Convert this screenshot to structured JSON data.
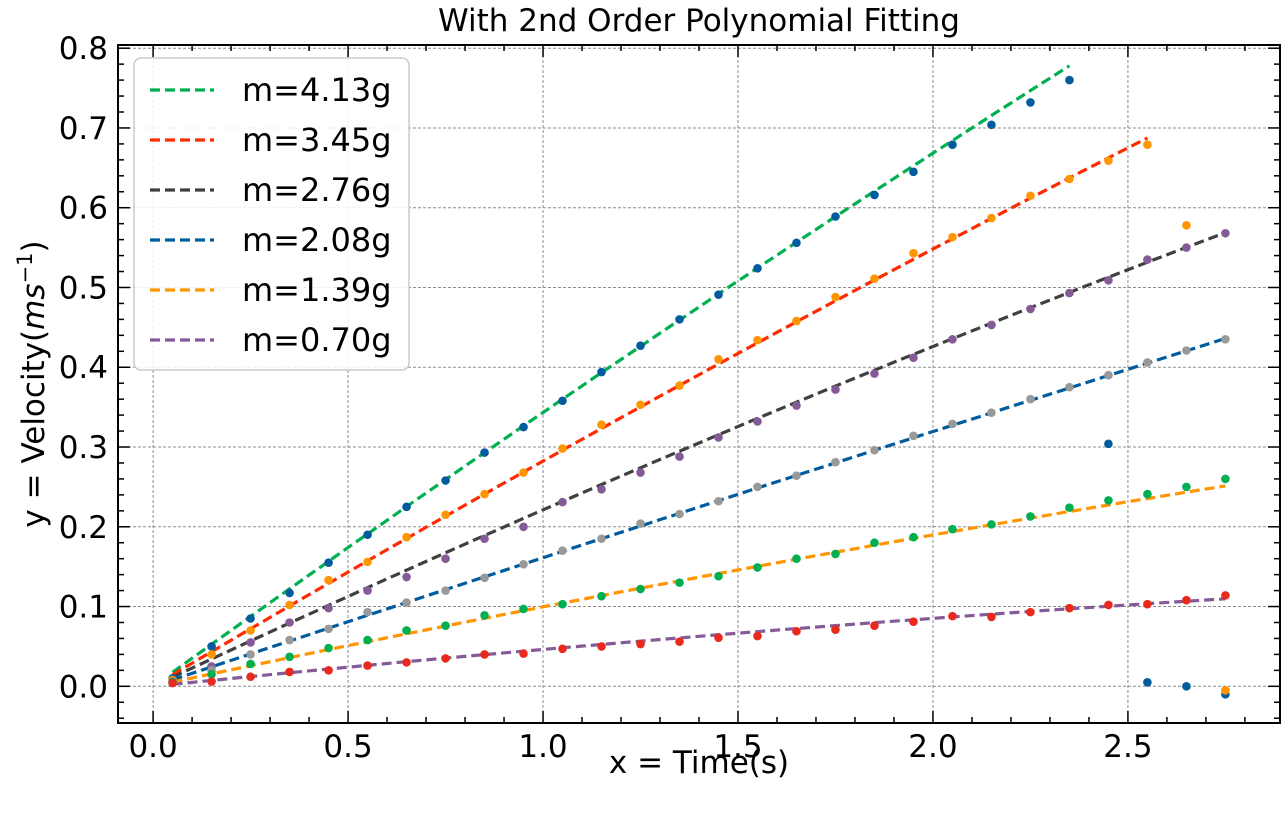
{
  "chart_data": {
    "type": "scatter",
    "title": "With 2nd Order Polynomial Fitting",
    "xlabel": "x = Time(s)",
    "ylabel_prefix": "y = Velocity(",
    "ylabel_unit": "ms",
    "ylabel_exp": "−1",
    "ylabel_suffix": ")",
    "xlim": [
      -0.09,
      2.89
    ],
    "ylim": [
      -0.046,
      0.804
    ],
    "xticks": [
      0.0,
      0.5,
      1.0,
      1.5,
      2.0,
      2.5
    ],
    "xtick_labels": [
      "0.0",
      "0.5",
      "1.0",
      "1.5",
      "2.0",
      "2.5"
    ],
    "yticks": [
      0.0,
      0.1,
      0.2,
      0.3,
      0.4,
      0.5,
      0.6,
      0.7,
      0.8
    ],
    "ytick_labels": [
      "0.0",
      "0.1",
      "0.2",
      "0.3",
      "0.4",
      "0.5",
      "0.6",
      "0.7",
      "0.8"
    ],
    "grid": true,
    "legend_position": "top-left",
    "fits": [
      {
        "name": "m=4.13g",
        "color": "#00b050",
        "x_range": [
          0.05,
          2.35
        ],
        "coeffs": [
          -0.0091,
          0.3524,
          0.0
        ]
      },
      {
        "name": "m=3.45g",
        "color": "#ff2a00",
        "x_range": [
          0.05,
          2.55
        ],
        "coeffs": [
          -0.0082,
          0.2905,
          0.0
        ]
      },
      {
        "name": "m=2.76g",
        "color": "#404040",
        "x_range": [
          0.05,
          2.75
        ],
        "coeffs": [
          -0.0082,
          0.2294,
          0.0
        ]
      },
      {
        "name": "m=2.08g",
        "color": "#005c9e",
        "x_range": [
          0.05,
          2.75
        ],
        "coeffs": [
          -0.0015,
          0.1627,
          0.0
        ]
      },
      {
        "name": "m=1.39g",
        "color": "#ff9500",
        "x_range": [
          0.05,
          2.75
        ],
        "coeffs": [
          -0.0047,
          0.1043,
          0.0
        ]
      },
      {
        "name": "m=0.70g",
        "color": "#845b97",
        "x_range": [
          0.05,
          2.75
        ],
        "coeffs": [
          -0.0036,
          0.0498,
          0.0
        ]
      }
    ],
    "point_series": [
      {
        "color": "#005c9e",
        "x": [
          0.05,
          0.15,
          0.25,
          0.35,
          0.45,
          0.55,
          0.65,
          0.75,
          0.85,
          0.95,
          1.05,
          1.15,
          1.25,
          1.35,
          1.45,
          1.55,
          1.65,
          1.75,
          1.85,
          1.95,
          2.05,
          2.15,
          2.25,
          2.35,
          2.45,
          2.55,
          2.65,
          2.75
        ],
        "y": [
          0.01,
          0.05,
          0.085,
          0.117,
          0.155,
          0.19,
          0.225,
          0.258,
          0.293,
          0.325,
          0.358,
          0.394,
          0.427,
          0.46,
          0.491,
          0.524,
          0.556,
          0.589,
          0.616,
          0.645,
          0.679,
          0.704,
          0.732,
          0.76,
          0.304,
          0.005,
          0.0,
          -0.01
        ]
      },
      {
        "color": "#ff9500",
        "x": [
          0.05,
          0.15,
          0.25,
          0.35,
          0.45,
          0.55,
          0.65,
          0.75,
          0.85,
          0.95,
          1.05,
          1.15,
          1.25,
          1.35,
          1.45,
          1.55,
          1.65,
          1.75,
          1.85,
          1.95,
          2.05,
          2.15,
          2.25,
          2.35,
          2.45,
          2.55,
          2.65,
          2.75
        ],
        "y": [
          0.008,
          0.04,
          0.07,
          0.102,
          0.133,
          0.156,
          0.187,
          0.215,
          0.241,
          0.268,
          0.298,
          0.328,
          0.353,
          0.377,
          0.41,
          0.434,
          0.458,
          0.488,
          0.511,
          0.543,
          0.563,
          0.587,
          0.615,
          0.636,
          0.659,
          0.679,
          0.578,
          -0.005
        ]
      },
      {
        "color": "#845b97",
        "x": [
          0.05,
          0.15,
          0.25,
          0.35,
          0.45,
          0.55,
          0.65,
          0.75,
          0.85,
          0.95,
          1.05,
          1.15,
          1.25,
          1.35,
          1.45,
          1.55,
          1.65,
          1.75,
          1.85,
          1.95,
          2.05,
          2.15,
          2.25,
          2.35,
          2.45,
          2.55,
          2.65,
          2.75
        ],
        "y": [
          0.006,
          0.025,
          0.055,
          0.08,
          0.098,
          0.12,
          0.137,
          0.16,
          0.185,
          0.2,
          0.231,
          0.247,
          0.268,
          0.288,
          0.312,
          0.332,
          0.352,
          0.372,
          0.392,
          0.412,
          0.435,
          0.453,
          0.473,
          0.493,
          0.509,
          0.535,
          0.55,
          0.568
        ]
      },
      {
        "color": "#999999",
        "x": [
          0.05,
          0.15,
          0.25,
          0.35,
          0.45,
          0.55,
          0.65,
          0.75,
          0.85,
          0.95,
          1.05,
          1.15,
          1.25,
          1.35,
          1.45,
          1.55,
          1.65,
          1.75,
          1.85,
          1.95,
          2.05,
          2.15,
          2.25,
          2.35,
          2.45,
          2.55,
          2.65,
          2.75
        ],
        "y": [
          0.005,
          0.02,
          0.04,
          0.058,
          0.072,
          0.093,
          0.105,
          0.12,
          0.136,
          0.153,
          0.17,
          0.185,
          0.204,
          0.216,
          0.232,
          0.25,
          0.264,
          0.281,
          0.296,
          0.314,
          0.329,
          0.343,
          0.36,
          0.375,
          0.39,
          0.406,
          0.421,
          0.435
        ]
      },
      {
        "color": "#00b050",
        "x": [
          0.05,
          0.15,
          0.25,
          0.35,
          0.45,
          0.55,
          0.65,
          0.75,
          0.85,
          0.95,
          1.05,
          1.15,
          1.25,
          1.35,
          1.45,
          1.55,
          1.65,
          1.75,
          1.85,
          1.95,
          2.05,
          2.15,
          2.25,
          2.35,
          2.45,
          2.55,
          2.65,
          2.75
        ],
        "y": [
          0.005,
          0.015,
          0.028,
          0.037,
          0.048,
          0.058,
          0.07,
          0.076,
          0.089,
          0.097,
          0.103,
          0.113,
          0.122,
          0.13,
          0.138,
          0.149,
          0.16,
          0.166,
          0.18,
          0.187,
          0.197,
          0.203,
          0.213,
          0.224,
          0.233,
          0.241,
          0.25,
          0.26
        ]
      },
      {
        "color": "#e8291c",
        "x": [
          0.05,
          0.15,
          0.25,
          0.35,
          0.45,
          0.55,
          0.65,
          0.75,
          0.85,
          0.95,
          1.05,
          1.15,
          1.25,
          1.35,
          1.45,
          1.55,
          1.65,
          1.75,
          1.85,
          1.95,
          2.05,
          2.15,
          2.25,
          2.35,
          2.45,
          2.55,
          2.65,
          2.75
        ],
        "y": [
          0.004,
          0.006,
          0.012,
          0.018,
          0.02,
          0.026,
          0.03,
          0.035,
          0.04,
          0.041,
          0.047,
          0.05,
          0.053,
          0.056,
          0.061,
          0.063,
          0.069,
          0.071,
          0.076,
          0.081,
          0.088,
          0.087,
          0.093,
          0.098,
          0.102,
          0.103,
          0.108,
          0.114
        ]
      }
    ]
  }
}
